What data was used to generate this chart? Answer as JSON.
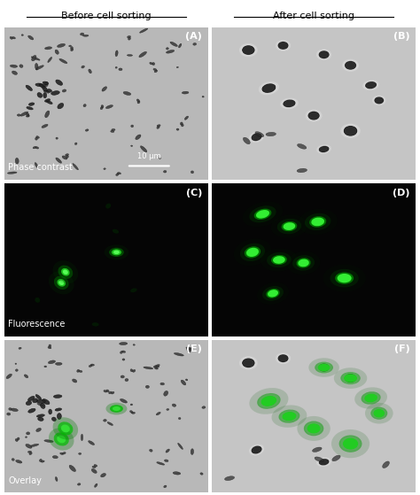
{
  "col_titles": [
    "Before cell sorting",
    "After cell sorting"
  ],
  "panel_labels": [
    [
      "(A)",
      "(B)"
    ],
    [
      "(C)",
      "(D)"
    ],
    [
      "(E)",
      "(F)"
    ]
  ],
  "row_labels": [
    "Phase contrast",
    "Fluorescence",
    "Overlay"
  ],
  "scale_bar_text": "10 μm",
  "background_color": "#ffffff",
  "phase_bg_color": "#c8c8c8",
  "fluor_bg_color": "#050505",
  "overlay_bg_color": "#c0c0c0",
  "panel_label_fontsize": 8,
  "row_label_fontsize": 7,
  "col_title_fontsize": 8,
  "figsize": [
    4.74,
    5.59
  ],
  "dpi": 100,
  "n_rows": 3,
  "n_cols": 2
}
